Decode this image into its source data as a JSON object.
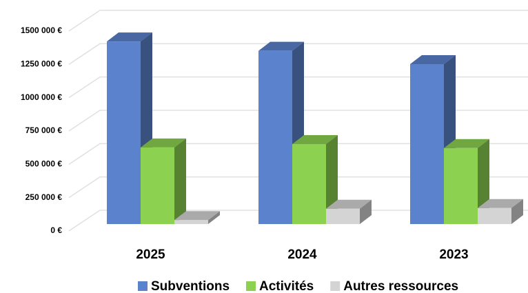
{
  "chart_data": {
    "type": "bar3d",
    "categories": [
      "2025",
      "2024",
      "2023"
    ],
    "series": [
      {
        "name": "Subventions",
        "color": "#5b82cc",
        "values": [
          1370000,
          1300000,
          1200000
        ]
      },
      {
        "name": "Activités",
        "color": "#8dd150",
        "values": [
          575000,
          600000,
          570000
        ]
      },
      {
        "name": "Autres ressources",
        "color": "#d4d4d4",
        "values": [
          30000,
          115000,
          120000
        ]
      }
    ],
    "ylim": [
      0,
      1500000
    ],
    "yticks": [
      {
        "value": 0,
        "label": "0 €"
      },
      {
        "value": 250000,
        "label": "250 000 €"
      },
      {
        "value": 500000,
        "label": "500 000 €"
      },
      {
        "value": 750000,
        "label": "750 000 €"
      },
      {
        "value": 1000000,
        "label": "1000 000 €"
      },
      {
        "value": 1250000,
        "label": "1250 000 €"
      },
      {
        "value": 1500000,
        "label": "1500 000 €"
      }
    ],
    "grid": true,
    "legend": "bottom"
  }
}
